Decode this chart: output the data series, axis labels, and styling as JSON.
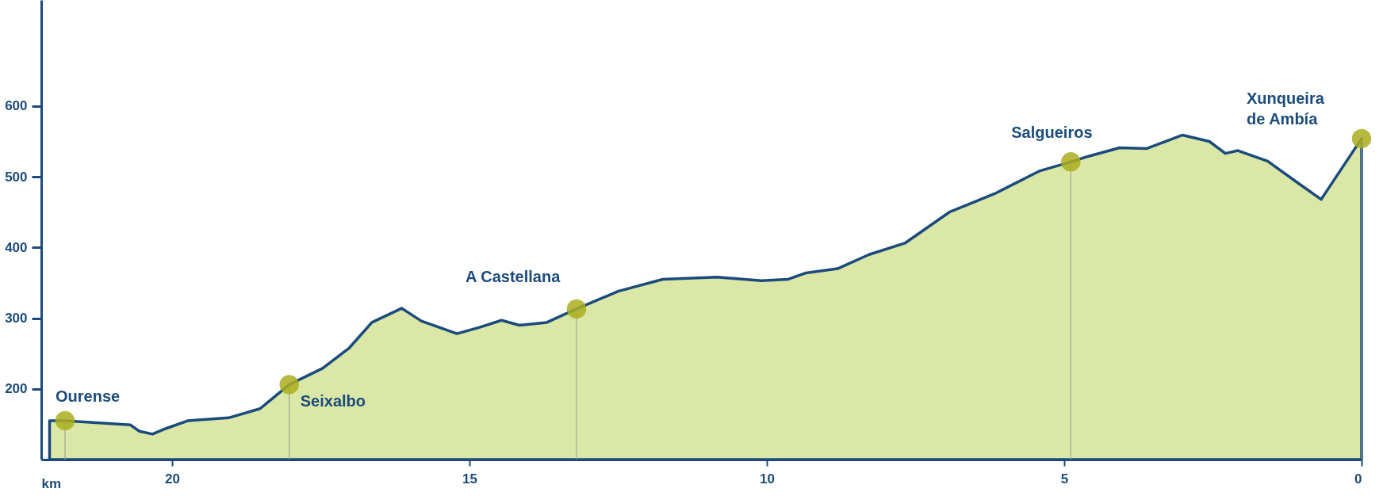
{
  "chart_data": {
    "type": "area",
    "xlabel": "km",
    "xlim": [
      22.2,
      0
    ],
    "xticks": [
      20,
      15,
      10,
      5,
      0
    ],
    "ylim": [
      100,
      750
    ],
    "yticks": [
      200,
      300,
      400,
      500,
      600
    ],
    "grid": false,
    "series": [
      {
        "color": "#d6e49c",
        "x": [
          22.06,
          21.8,
          20.7,
          20.55,
          20.33,
          20.1,
          19.73,
          19.05,
          18.52,
          18.03,
          17.47,
          17.02,
          16.64,
          16.14,
          15.81,
          15.21,
          14.83,
          14.46,
          14.16,
          13.7,
          13.2,
          12.5,
          11.75,
          10.84,
          10.09,
          9.64,
          9.34,
          8.81,
          8.28,
          7.68,
          6.93,
          6.17,
          5.42,
          4.89,
          4.59,
          4.07,
          3.61,
          3.01,
          2.56,
          2.29,
          2.08,
          1.58,
          1.05,
          0.68,
          0
        ],
        "values": [
          155,
          155,
          149,
          140,
          136,
          144,
          155,
          159,
          172,
          206,
          229,
          258,
          294,
          314,
          296,
          278,
          287,
          297,
          290,
          294,
          313,
          338,
          355,
          358,
          353,
          355,
          364,
          370,
          390,
          406,
          450,
          476,
          508,
          521,
          529,
          541,
          540,
          559,
          550,
          533,
          537,
          522,
          490,
          468,
          554
        ]
      },
      {
        "type": "lollipop",
        "color": "#a9ae1e",
        "marker": "circle",
        "x": [
          21.8,
          18.03,
          13.2,
          4.89,
          0
        ],
        "values": [
          155,
          206,
          313,
          521,
          554
        ]
      }
    ],
    "annotations": [
      {
        "text": "Ourense",
        "x": 21.8,
        "y": 155
      },
      {
        "text": "Seixalbo",
        "x": 18.03,
        "y": 206
      },
      {
        "text": "A Castellana",
        "x": 13.2,
        "y": 313
      },
      {
        "text": "Salgueiros",
        "x": 4.89,
        "y": 521
      },
      {
        "text": "Xunqueira\nde Ambía",
        "x": 0,
        "y": 554
      }
    ]
  }
}
